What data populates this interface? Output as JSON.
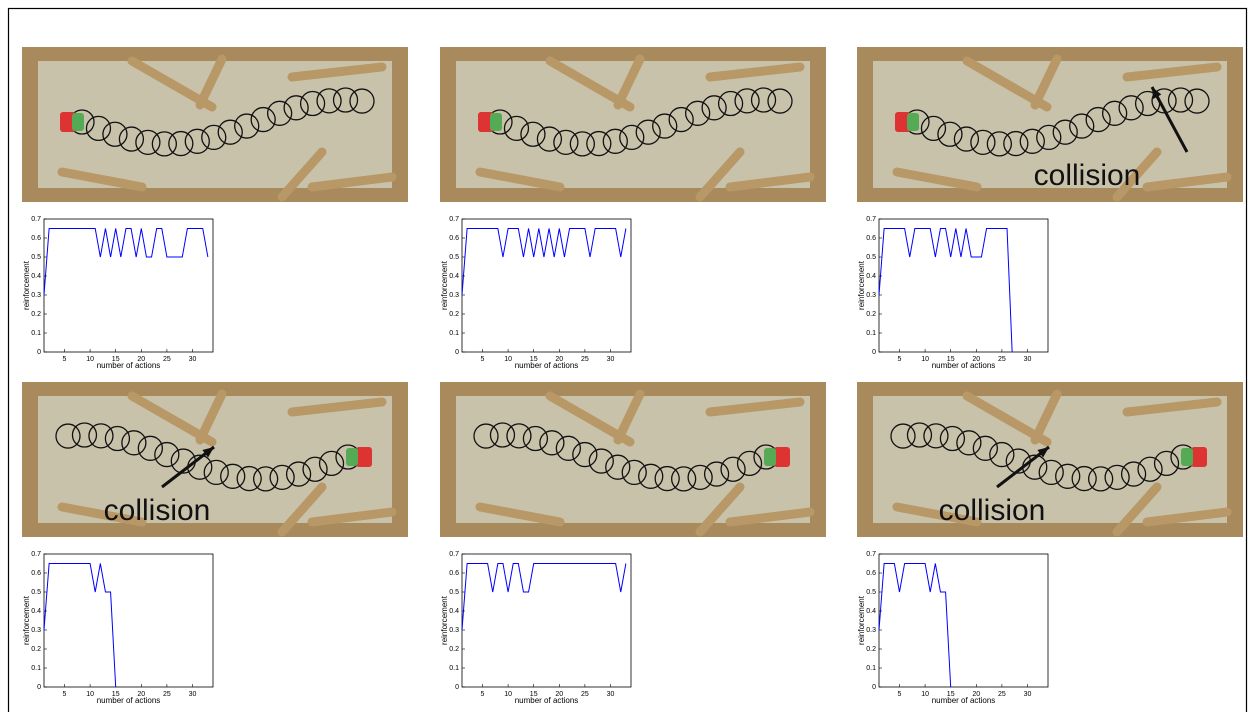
{
  "chart_data": [
    {
      "type": "line",
      "xlabel": "number of actions",
      "ylabel": "reinforcement",
      "xlim": [
        1,
        34
      ],
      "ylim": [
        0,
        0.7
      ],
      "xticks": [
        5,
        10,
        15,
        20,
        25,
        30
      ],
      "yticks": [
        0,
        0.1,
        0.2,
        0.3,
        0.4,
        0.5,
        0.6,
        0.7
      ],
      "x": [
        1,
        2,
        3,
        4,
        5,
        6,
        7,
        8,
        9,
        10,
        11,
        12,
        13,
        14,
        15,
        16,
        17,
        18,
        19,
        20,
        21,
        22,
        23,
        24,
        25,
        26,
        27,
        28,
        29,
        30,
        31,
        32,
        33
      ],
      "series": [
        {
          "color": "#0000ff",
          "values": [
            0.3,
            0.65,
            0.65,
            0.65,
            0.65,
            0.65,
            0.65,
            0.65,
            0.65,
            0.65,
            0.65,
            0.5,
            0.65,
            0.5,
            0.65,
            0.5,
            0.65,
            0.65,
            0.5,
            0.65,
            0.5,
            0.5,
            0.65,
            0.65,
            0.5,
            0.5,
            0.5,
            0.5,
            0.65,
            0.65,
            0.65,
            0.65,
            0.5
          ]
        }
      ]
    },
    {
      "type": "line",
      "xlabel": "number of actions",
      "ylabel": "reinforcement",
      "xlim": [
        1,
        34
      ],
      "ylim": [
        0,
        0.7
      ],
      "xticks": [
        5,
        10,
        15,
        20,
        25,
        30
      ],
      "yticks": [
        0,
        0.1,
        0.2,
        0.3,
        0.4,
        0.5,
        0.6,
        0.7
      ],
      "x": [
        1,
        2,
        3,
        4,
        5,
        6,
        7,
        8,
        9,
        10,
        11,
        12,
        13,
        14,
        15,
        16,
        17,
        18,
        19,
        20,
        21,
        22,
        23,
        24,
        25,
        26,
        27,
        28,
        29,
        30,
        31,
        32,
        33
      ],
      "series": [
        {
          "color": "#0000ff",
          "values": [
            0.3,
            0.65,
            0.65,
            0.65,
            0.65,
            0.65,
            0.65,
            0.65,
            0.5,
            0.65,
            0.65,
            0.65,
            0.5,
            0.65,
            0.5,
            0.65,
            0.5,
            0.65,
            0.5,
            0.65,
            0.5,
            0.65,
            0.65,
            0.65,
            0.65,
            0.5,
            0.65,
            0.65,
            0.65,
            0.65,
            0.65,
            0.5,
            0.65
          ]
        }
      ]
    },
    {
      "type": "line",
      "xlabel": "number of actions",
      "ylabel": "reinforcement",
      "annotation": "collision",
      "xlim": [
        1,
        34
      ],
      "ylim": [
        0,
        0.7
      ],
      "xticks": [
        5,
        10,
        15,
        20,
        25,
        30
      ],
      "yticks": [
        0,
        0.1,
        0.2,
        0.3,
        0.4,
        0.5,
        0.6,
        0.7
      ],
      "x": [
        1,
        2,
        3,
        4,
        5,
        6,
        7,
        8,
        9,
        10,
        11,
        12,
        13,
        14,
        15,
        16,
        17,
        18,
        19,
        20,
        21,
        22,
        23,
        24,
        25,
        26,
        27
      ],
      "series": [
        {
          "color": "#0000ff",
          "values": [
            0.3,
            0.65,
            0.65,
            0.65,
            0.65,
            0.65,
            0.5,
            0.65,
            0.65,
            0.65,
            0.65,
            0.5,
            0.65,
            0.65,
            0.5,
            0.65,
            0.5,
            0.65,
            0.5,
            0.5,
            0.5,
            0.65,
            0.65,
            0.65,
            0.65,
            0.65,
            0
          ]
        }
      ]
    },
    {
      "type": "line",
      "xlabel": "number of actions",
      "ylabel": "reinforcement",
      "annotation": "collision",
      "xlim": [
        1,
        34
      ],
      "ylim": [
        0,
        0.7
      ],
      "xticks": [
        5,
        10,
        15,
        20,
        25,
        30
      ],
      "yticks": [
        0,
        0.1,
        0.2,
        0.3,
        0.4,
        0.5,
        0.6,
        0.7
      ],
      "x": [
        1,
        2,
        3,
        4,
        5,
        6,
        7,
        8,
        9,
        10,
        11,
        12,
        13,
        14,
        15
      ],
      "series": [
        {
          "color": "#0000ff",
          "values": [
            0.3,
            0.65,
            0.65,
            0.65,
            0.65,
            0.65,
            0.65,
            0.65,
            0.65,
            0.65,
            0.5,
            0.65,
            0.5,
            0.5,
            0
          ]
        }
      ]
    },
    {
      "type": "line",
      "xlabel": "number of actions",
      "ylabel": "reinforcement",
      "xlim": [
        1,
        34
      ],
      "ylim": [
        0,
        0.7
      ],
      "xticks": [
        5,
        10,
        15,
        20,
        25,
        30
      ],
      "yticks": [
        0,
        0.1,
        0.2,
        0.3,
        0.4,
        0.5,
        0.6,
        0.7
      ],
      "x": [
        1,
        2,
        3,
        4,
        5,
        6,
        7,
        8,
        9,
        10,
        11,
        12,
        13,
        14,
        15,
        16,
        17,
        18,
        19,
        20,
        21,
        22,
        23,
        24,
        25,
        26,
        27,
        28,
        29,
        30,
        31,
        32,
        33
      ],
      "series": [
        {
          "color": "#0000ff",
          "values": [
            0.3,
            0.65,
            0.65,
            0.65,
            0.65,
            0.65,
            0.5,
            0.65,
            0.65,
            0.5,
            0.65,
            0.65,
            0.5,
            0.5,
            0.65,
            0.65,
            0.65,
            0.65,
            0.65,
            0.65,
            0.65,
            0.65,
            0.65,
            0.65,
            0.65,
            0.65,
            0.65,
            0.65,
            0.65,
            0.65,
            0.65,
            0.5,
            0.65
          ]
        }
      ]
    },
    {
      "type": "line",
      "xlabel": "number of actions",
      "ylabel": "reinforcement",
      "annotation": "collision",
      "xlim": [
        1,
        34
      ],
      "ylim": [
        0,
        0.7
      ],
      "xticks": [
        5,
        10,
        15,
        20,
        25,
        30
      ],
      "yticks": [
        0,
        0.1,
        0.2,
        0.3,
        0.4,
        0.5,
        0.6,
        0.7
      ],
      "x": [
        1,
        2,
        3,
        4,
        5,
        6,
        7,
        8,
        9,
        10,
        11,
        12,
        13,
        14,
        15
      ],
      "series": [
        {
          "color": "#0000ff",
          "values": [
            0.3,
            0.65,
            0.65,
            0.65,
            0.5,
            0.65,
            0.65,
            0.65,
            0.65,
            0.65,
            0.5,
            0.65,
            0.5,
            0.5,
            0
          ]
        }
      ]
    }
  ]
}
